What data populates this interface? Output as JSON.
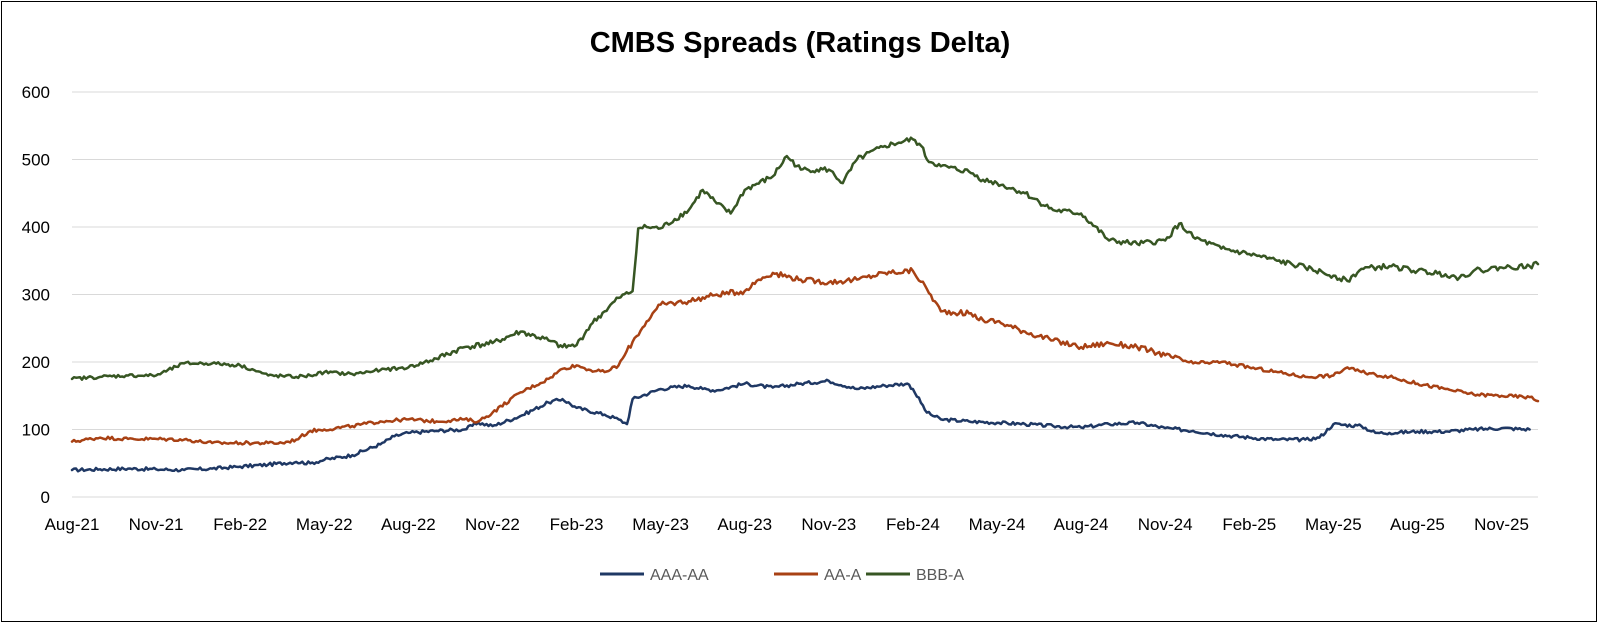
{
  "chart_data": {
    "type": "line",
    "title": "CMBS Spreads (Ratings Delta)",
    "xlabel": "",
    "ylabel": "",
    "ylim": [
      0,
      600
    ],
    "yticks": [
      0,
      100,
      200,
      300,
      400,
      500,
      600
    ],
    "grid": true,
    "legend_position": "bottom-center",
    "x_start": "Aug-21",
    "x_end": "Dec-25",
    "xticks": [
      {
        "label": "Aug-21",
        "t": 0
      },
      {
        "label": "Nov-21",
        "t": 3
      },
      {
        "label": "Feb-22",
        "t": 6
      },
      {
        "label": "May-22",
        "t": 9
      },
      {
        "label": "Aug-22",
        "t": 12
      },
      {
        "label": "Nov-22",
        "t": 15
      },
      {
        "label": "Feb-23",
        "t": 18
      },
      {
        "label": "May-23",
        "t": 21
      },
      {
        "label": "Aug-23",
        "t": 24
      },
      {
        "label": "Nov-23",
        "t": 27
      },
      {
        "label": "Feb-24",
        "t": 30
      },
      {
        "label": "May-24",
        "t": 33
      },
      {
        "label": "Aug-24",
        "t": 36
      },
      {
        "label": "Nov-24",
        "t": 39
      },
      {
        "label": "Feb-25",
        "t": 42
      },
      {
        "label": "May-25",
        "t": 45
      },
      {
        "label": "Aug-25",
        "t": 48
      },
      {
        "label": "Nov-25",
        "t": 51
      }
    ],
    "series": [
      {
        "name": "AAA-AA",
        "color": "#1f3864",
        "points": [
          [
            0,
            40
          ],
          [
            1,
            41
          ],
          [
            2,
            42
          ],
          [
            3,
            41
          ],
          [
            4,
            40
          ],
          [
            5,
            42
          ],
          [
            6,
            45
          ],
          [
            7,
            48
          ],
          [
            8,
            52
          ],
          [
            8.5,
            50
          ],
          [
            9,
            55
          ],
          [
            10,
            62
          ],
          [
            11,
            78
          ],
          [
            11.5,
            90
          ],
          [
            12,
            95
          ],
          [
            13,
            98
          ],
          [
            14,
            100
          ],
          [
            14.5,
            110
          ],
          [
            15,
            105
          ],
          [
            16,
            120
          ],
          [
            17,
            140
          ],
          [
            17.5,
            145
          ],
          [
            18,
            132
          ],
          [
            19,
            122
          ],
          [
            19.5,
            115
          ],
          [
            19.8,
            108
          ],
          [
            20,
            145
          ],
          [
            21,
            160
          ],
          [
            22,
            165
          ],
          [
            22.5,
            160
          ],
          [
            23,
            158
          ],
          [
            24,
            168
          ],
          [
            25,
            162
          ],
          [
            26,
            168
          ],
          [
            27,
            172
          ],
          [
            28,
            160
          ],
          [
            29,
            165
          ],
          [
            29.8,
            168
          ],
          [
            30,
            160
          ],
          [
            30.5,
            125
          ],
          [
            31,
            115
          ],
          [
            32,
            112
          ],
          [
            33,
            110
          ],
          [
            34,
            108
          ],
          [
            35,
            105
          ],
          [
            36,
            103
          ],
          [
            37,
            108
          ],
          [
            38,
            110
          ],
          [
            39,
            102
          ],
          [
            40,
            98
          ],
          [
            41,
            92
          ],
          [
            42,
            88
          ],
          [
            43,
            85
          ],
          [
            44,
            85
          ],
          [
            44.5,
            88
          ],
          [
            45,
            108
          ],
          [
            46,
            105
          ],
          [
            46.5,
            95
          ],
          [
            47,
            95
          ],
          [
            48,
            97
          ],
          [
            49,
            97
          ],
          [
            50,
            100
          ],
          [
            51,
            102
          ],
          [
            52,
            100
          ]
        ]
      },
      {
        "name": "AA-A",
        "color": "#a84114",
        "points": [
          [
            0,
            82
          ],
          [
            1,
            88
          ],
          [
            2,
            86
          ],
          [
            3,
            86
          ],
          [
            4,
            85
          ],
          [
            5,
            80
          ],
          [
            6,
            80
          ],
          [
            7,
            80
          ],
          [
            7.5,
            80
          ],
          [
            8,
            85
          ],
          [
            8.5,
            98
          ],
          [
            9,
            100
          ],
          [
            10,
            105
          ],
          [
            11,
            112
          ],
          [
            12,
            115
          ],
          [
            13,
            112
          ],
          [
            14,
            115
          ],
          [
            14.5,
            112
          ],
          [
            15,
            125
          ],
          [
            16,
            155
          ],
          [
            17,
            175
          ],
          [
            17.5,
            190
          ],
          [
            18,
            195
          ],
          [
            18.5,
            188
          ],
          [
            19,
            185
          ],
          [
            19.5,
            195
          ],
          [
            20,
            230
          ],
          [
            20.5,
            260
          ],
          [
            21,
            285
          ],
          [
            22,
            290
          ],
          [
            23,
            300
          ],
          [
            24,
            305
          ],
          [
            24.5,
            322
          ],
          [
            25,
            332
          ],
          [
            26,
            322
          ],
          [
            27,
            318
          ],
          [
            28,
            322
          ],
          [
            29,
            332
          ],
          [
            30,
            335
          ],
          [
            30.5,
            308
          ],
          [
            31,
            275
          ],
          [
            32,
            272
          ],
          [
            32.5,
            262
          ],
          [
            33,
            260
          ],
          [
            34,
            245
          ],
          [
            35,
            232
          ],
          [
            36,
            222
          ],
          [
            37,
            228
          ],
          [
            38,
            222
          ],
          [
            39,
            210
          ],
          [
            40,
            198
          ],
          [
            41,
            200
          ],
          [
            42,
            192
          ],
          [
            43,
            185
          ],
          [
            44,
            178
          ],
          [
            45,
            180
          ],
          [
            45.5,
            192
          ],
          [
            46,
            185
          ],
          [
            47,
            178
          ],
          [
            48,
            168
          ],
          [
            49,
            160
          ],
          [
            50,
            152
          ],
          [
            51,
            150
          ],
          [
            52,
            148
          ],
          [
            52.3,
            142
          ]
        ]
      },
      {
        "name": "BBB-A",
        "color": "#375623",
        "points": [
          [
            0,
            175
          ],
          [
            1,
            178
          ],
          [
            2,
            180
          ],
          [
            3,
            180
          ],
          [
            4,
            198
          ],
          [
            5,
            198
          ],
          [
            6,
            195
          ],
          [
            6.5,
            188
          ],
          [
            7,
            180
          ],
          [
            8,
            178
          ],
          [
            8.5,
            180
          ],
          [
            9,
            185
          ],
          [
            10,
            182
          ],
          [
            11,
            188
          ],
          [
            12,
            192
          ],
          [
            13,
            205
          ],
          [
            14,
            222
          ],
          [
            15,
            228
          ],
          [
            16,
            245
          ],
          [
            17,
            232
          ],
          [
            17.5,
            222
          ],
          [
            18,
            225
          ],
          [
            18.5,
            255
          ],
          [
            19,
            275
          ],
          [
            19.5,
            295
          ],
          [
            20,
            305
          ],
          [
            20.2,
            398
          ],
          [
            20.5,
            400
          ],
          [
            21,
            398
          ],
          [
            22,
            425
          ],
          [
            22.5,
            455
          ],
          [
            23,
            435
          ],
          [
            23.5,
            420
          ],
          [
            24,
            455
          ],
          [
            25,
            475
          ],
          [
            25.5,
            505
          ],
          [
            26,
            485
          ],
          [
            27,
            485
          ],
          [
            27.5,
            465
          ],
          [
            28,
            500
          ],
          [
            29,
            520
          ],
          [
            29.5,
            525
          ],
          [
            30,
            530
          ],
          [
            30.3,
            520
          ],
          [
            30.5,
            500
          ],
          [
            31,
            490
          ],
          [
            32,
            482
          ],
          [
            32.5,
            470
          ],
          [
            33,
            465
          ],
          [
            34,
            450
          ],
          [
            35,
            425
          ],
          [
            36,
            420
          ],
          [
            37,
            380
          ],
          [
            38,
            375
          ],
          [
            39,
            380
          ],
          [
            39.5,
            405
          ],
          [
            40,
            385
          ],
          [
            41,
            368
          ],
          [
            42,
            360
          ],
          [
            43,
            350
          ],
          [
            44,
            340
          ],
          [
            45,
            328
          ],
          [
            45.5,
            320
          ],
          [
            46,
            338
          ],
          [
            47,
            342
          ],
          [
            48,
            335
          ],
          [
            49,
            330
          ],
          [
            49.5,
            325
          ],
          [
            50,
            335
          ],
          [
            51,
            340
          ],
          [
            52,
            342
          ],
          [
            52.3,
            345
          ]
        ]
      }
    ]
  }
}
